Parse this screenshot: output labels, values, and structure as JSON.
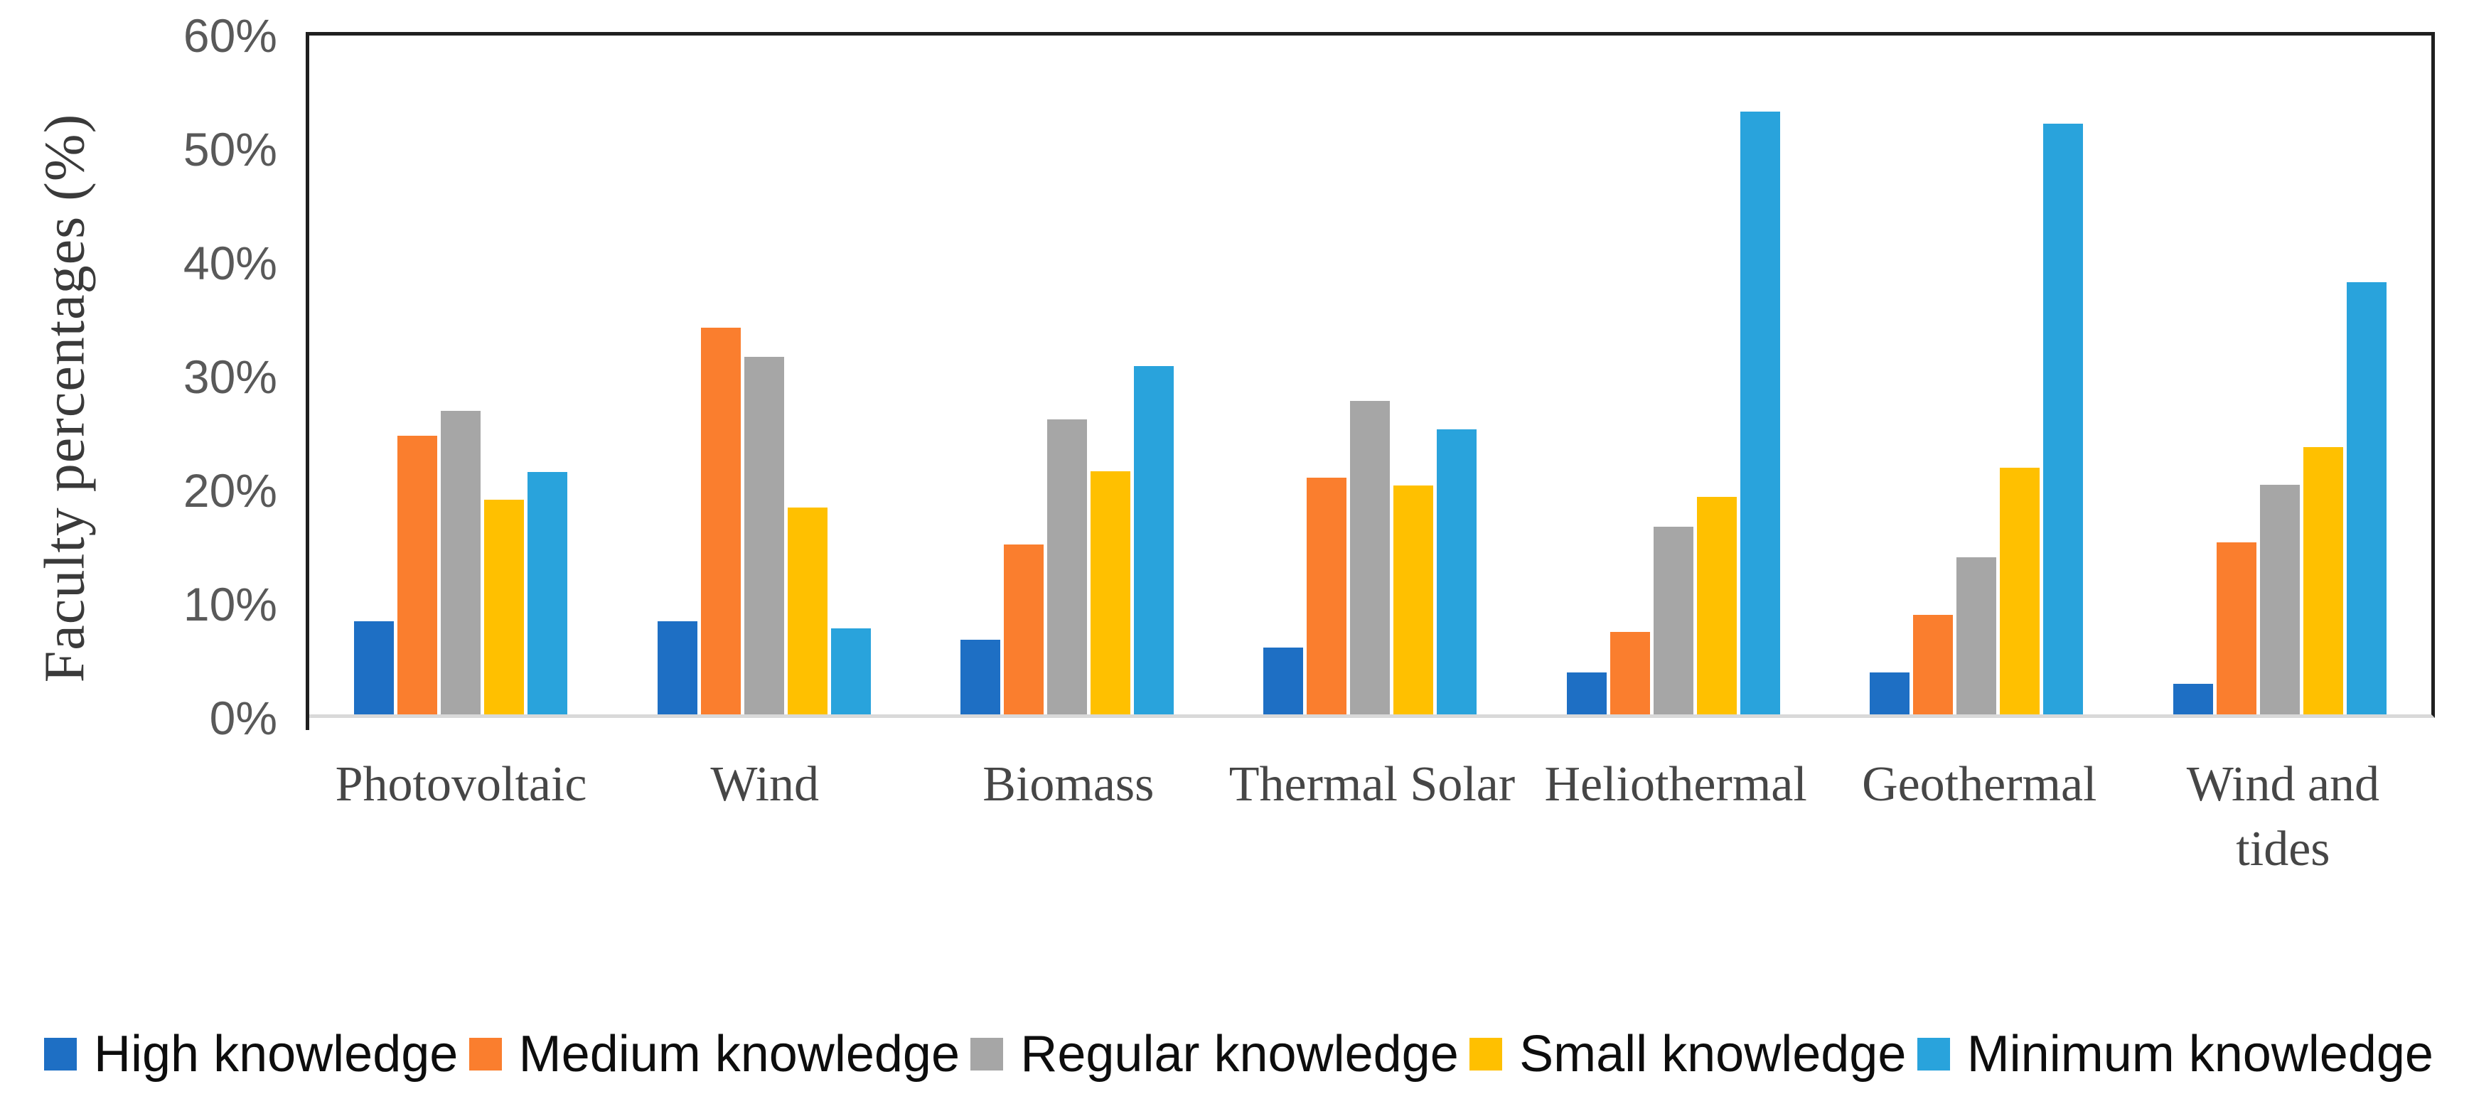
{
  "chart_data": {
    "type": "bar",
    "title": "",
    "xlabel": "",
    "ylabel": "Faculty percentages (%)",
    "ylim": [
      0,
      60
    ],
    "yticks": [
      {
        "value": 0,
        "label": "0%"
      },
      {
        "value": 10,
        "label": "10%"
      },
      {
        "value": 20,
        "label": "20%"
      },
      {
        "value": 30,
        "label": "30%"
      },
      {
        "value": 40,
        "label": "40%"
      },
      {
        "value": 50,
        "label": "50%"
      },
      {
        "value": 60,
        "label": "60%"
      }
    ],
    "grid": false,
    "legend_position": "bottom",
    "categories": [
      "Photovoltaic",
      "Wind",
      "Biomass",
      "Thermal Solar",
      "Heliothermal",
      "Geothermal",
      "Wind and\ntides"
    ],
    "series": [
      {
        "name": "High knowledge",
        "color": "#1e6fc4",
        "values": [
          8.2,
          8.2,
          6.6,
          5.9,
          3.7,
          3.7,
          2.7
        ]
      },
      {
        "name": "Medium knowledge",
        "color": "#fa7e2e",
        "values": [
          24.6,
          34.2,
          15.0,
          20.9,
          7.3,
          8.8,
          15.2
        ]
      },
      {
        "name": "Regular knowledge",
        "color": "#a6a6a6",
        "values": [
          26.8,
          31.6,
          26.1,
          27.7,
          16.6,
          13.9,
          20.3
        ]
      },
      {
        "name": "Small knowledge",
        "color": "#ffc000",
        "values": [
          19.0,
          18.3,
          21.5,
          20.2,
          19.2,
          21.8,
          23.6
        ]
      },
      {
        "name": "Minimum knowledge",
        "color": "#29a3dc",
        "values": [
          21.4,
          7.6,
          30.8,
          25.2,
          53.3,
          52.2,
          38.2
        ]
      }
    ],
    "colors": {
      "axis_line": "#1f1f1f",
      "baseline": "#d9d9d9",
      "tick_text": "#595959",
      "category_text": "#464646",
      "legend_text": "#0d0d0d"
    }
  }
}
